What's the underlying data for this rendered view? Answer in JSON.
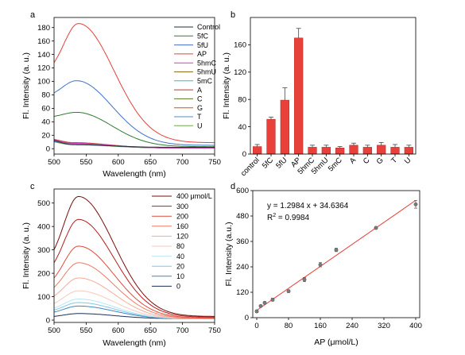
{
  "chart_data": [
    {
      "panel": "a",
      "type": "line",
      "xlabel": "Wavelength (nm)",
      "ylabel": "Fl. Intensity (a. u.)",
      "xlim": [
        500,
        750
      ],
      "ylim": [
        -8,
        195
      ],
      "xticks": [
        500,
        550,
        600,
        650,
        700,
        750
      ],
      "yticks": [
        0,
        20,
        40,
        60,
        80,
        100,
        120,
        140,
        160,
        180
      ],
      "legend_position": "top-right",
      "series": [
        {
          "name": "Control",
          "color": "#1f2d3d",
          "peak_x": 530,
          "peak_y": 6,
          "start_y": 12,
          "end_y": 2
        },
        {
          "name": "5fC",
          "color": "#2e7d32",
          "peak_x": 535,
          "peak_y": 54,
          "start_y": 48,
          "end_y": 3
        },
        {
          "name": "5fU",
          "color": "#3f6fc9",
          "peak_x": 535,
          "peak_y": 101,
          "start_y": 83,
          "end_y": 5
        },
        {
          "name": "AP",
          "color": "#e8403a",
          "peak_x": 538,
          "peak_y": 186,
          "start_y": 128,
          "end_y": 9
        },
        {
          "name": "5hmC",
          "color": "#d63cc0",
          "peak_x": 530,
          "peak_y": 8,
          "start_y": 13,
          "end_y": 1
        },
        {
          "name": "5hmU",
          "color": "#8c6d1f",
          "peak_x": 530,
          "peak_y": 8,
          "start_y": 12,
          "end_y": 1
        },
        {
          "name": "5mC",
          "color": "#3ab0e0",
          "peak_x": 530,
          "peak_y": 7,
          "start_y": 11,
          "end_y": 1
        },
        {
          "name": "A",
          "color": "#c0392b",
          "peak_x": 530,
          "peak_y": 9,
          "start_y": 14,
          "end_y": 1
        },
        {
          "name": "C",
          "color": "#5d7a1f",
          "peak_x": 530,
          "peak_y": 8,
          "start_y": 13,
          "end_y": 1
        },
        {
          "name": "G",
          "color": "#d35400",
          "peak_x": 530,
          "peak_y": 7,
          "start_y": 12,
          "end_y": 1
        },
        {
          "name": "T",
          "color": "#4a90d9",
          "peak_x": 530,
          "peak_y": 7,
          "start_y": 11,
          "end_y": 1
        },
        {
          "name": "U",
          "color": "#6aa84f",
          "peak_x": 530,
          "peak_y": 6,
          "start_y": 10,
          "end_y": 1
        }
      ]
    },
    {
      "panel": "b",
      "type": "bar",
      "ylabel": "Fl. Intensity (a. u.)",
      "ylim": [
        0,
        200
      ],
      "yticks": [
        0,
        40,
        80,
        120,
        160
      ],
      "bar_color": "#e8403a",
      "categories": [
        "control",
        "5fC",
        "5fU",
        "AP",
        "5hmC",
        "5hmU",
        "5mC",
        "A",
        "C",
        "G",
        "T",
        "U"
      ],
      "values": [
        11,
        51,
        79,
        170,
        10,
        10,
        9,
        13,
        10,
        13,
        10,
        10
      ],
      "errors": [
        3,
        3,
        18,
        14,
        3,
        3,
        2,
        3,
        3,
        4,
        4,
        3
      ]
    },
    {
      "panel": "c",
      "type": "line",
      "xlabel": "Wavelength (nm)",
      "ylabel": "Fl. Intensity (a. u.)",
      "xlim": [
        500,
        750
      ],
      "ylim": [
        -10,
        560
      ],
      "xticks": [
        500,
        550,
        600,
        650,
        700,
        750
      ],
      "yticks": [
        0,
        100,
        200,
        300,
        400,
        500
      ],
      "legend_position": "top-right",
      "series": [
        {
          "name": "400 μmol/L",
          "color": "#7a0c0c",
          "peak_y": 528
        },
        {
          "name": "300",
          "color": "#b81d1d",
          "peak_y": 430
        },
        {
          "name": "200",
          "color": "#e04a3a",
          "peak_y": 316
        },
        {
          "name": "160",
          "color": "#ee7a62",
          "peak_y": 245
        },
        {
          "name": "120",
          "color": "#f6ab97",
          "peak_y": 180
        },
        {
          "name": "80",
          "color": "#f3cbbf",
          "peak_y": 125
        },
        {
          "name": "40",
          "color": "#b9e3f2",
          "peak_y": 90
        },
        {
          "name": "20",
          "color": "#7fc8e6",
          "peak_y": 75
        },
        {
          "name": "10",
          "color": "#3c86c2",
          "peak_y": 60
        },
        {
          "name": "0",
          "color": "#1a2f57",
          "peak_y": 28
        }
      ]
    },
    {
      "panel": "d",
      "type": "scatter",
      "xlabel": "AP (μmol/L)",
      "ylabel": "Fl. Intensity (a.u.)",
      "xlim": [
        -10,
        410
      ],
      "ylim": [
        0,
        600
      ],
      "xticks": [
        0,
        80,
        160,
        240,
        320,
        400
      ],
      "yticks": [
        0,
        120,
        240,
        360,
        480,
        600
      ],
      "equation": "y = 1.2984 x + 34.6364",
      "r2_label": "R",
      "r2_sup": "2",
      "r2_value": " = 0.9984",
      "fit": {
        "slope": 1.2984,
        "intercept": 34.6364,
        "color": "#e8403a"
      },
      "points": [
        {
          "x": 0,
          "y": 30,
          "err": 6
        },
        {
          "x": 10,
          "y": 55,
          "err": 5
        },
        {
          "x": 20,
          "y": 70,
          "err": 6
        },
        {
          "x": 40,
          "y": 85,
          "err": 7
        },
        {
          "x": 80,
          "y": 125,
          "err": 6
        },
        {
          "x": 120,
          "y": 180,
          "err": 10
        },
        {
          "x": 160,
          "y": 250,
          "err": 10
        },
        {
          "x": 200,
          "y": 320,
          "err": 8
        },
        {
          "x": 300,
          "y": 424,
          "err": 6
        },
        {
          "x": 400,
          "y": 535,
          "err": 18
        }
      ]
    }
  ]
}
